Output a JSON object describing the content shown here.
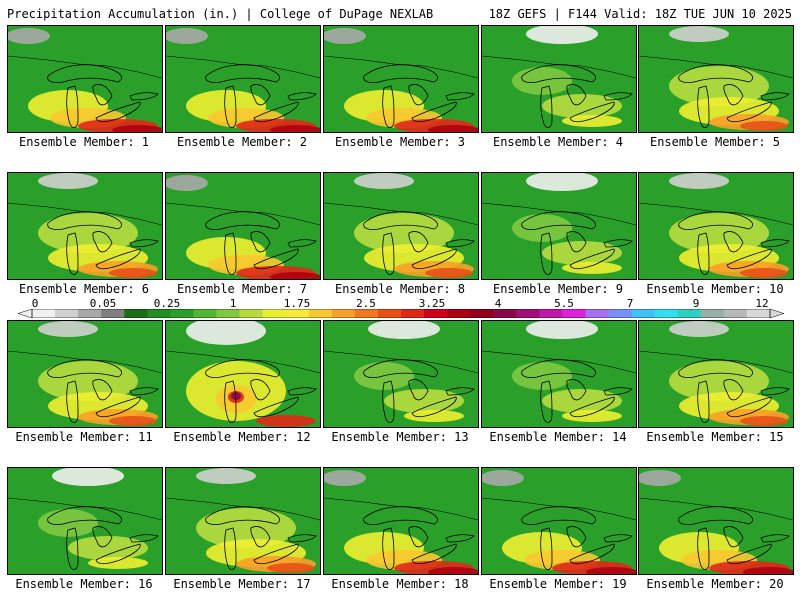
{
  "header": {
    "left": "Precipitation Accumulation (in.) | College of DuPage NEXLAB",
    "right": "18Z GEFS | F144 Valid: 18Z TUE JUN 10 2025"
  },
  "colorbar": {
    "labels": [
      "0",
      "0.05",
      "0.25",
      "1",
      "1.75",
      "2.5",
      "3.25",
      "4",
      "5.5",
      "7",
      "9",
      "12"
    ],
    "colors": [
      "#f0f0f0",
      "#d0d0d0",
      "#a8a8a8",
      "#808080",
      "#1a6e1a",
      "#218c21",
      "#2aa02a",
      "#4fb830",
      "#80c840",
      "#b8dc40",
      "#e8f030",
      "#f8e838",
      "#f8c830",
      "#f8a028",
      "#f07820",
      "#e85018",
      "#e02818",
      "#d00018",
      "#b00010",
      "#900018",
      "#880848",
      "#a01078",
      "#c018a8",
      "#e020d8",
      "#a870f0",
      "#7890f8",
      "#40c0f8",
      "#30e0f0",
      "#30d0c0",
      "#98b0a8",
      "#b8b8b8",
      "#d8d8d8"
    ]
  },
  "members": [
    {
      "label": "Ensemble Member: 1",
      "style": "r"
    },
    {
      "label": "Ensemble Member: 2",
      "style": "r"
    },
    {
      "label": "Ensemble Member: 3",
      "style": "r"
    },
    {
      "label": "Ensemble Member: 4",
      "style": "g"
    },
    {
      "label": "Ensemble Member: 5",
      "style": "y"
    },
    {
      "label": "Ensemble Member: 6",
      "style": "y"
    },
    {
      "label": "Ensemble Member: 7",
      "style": "r"
    },
    {
      "label": "Ensemble Member: 8",
      "style": "y"
    },
    {
      "label": "Ensemble Member: 9",
      "style": "g"
    },
    {
      "label": "Ensemble Member: 10",
      "style": "y"
    },
    {
      "label": "Ensemble Member: 11",
      "style": "y"
    },
    {
      "label": "Ensemble Member: 12",
      "style": "p"
    },
    {
      "label": "Ensemble Member: 13",
      "style": "g"
    },
    {
      "label": "Ensemble Member: 14",
      "style": "g"
    },
    {
      "label": "Ensemble Member: 15",
      "style": "y"
    },
    {
      "label": "Ensemble Member: 16",
      "style": "g"
    },
    {
      "label": "Ensemble Member: 17",
      "style": "y"
    },
    {
      "label": "Ensemble Member: 18",
      "style": "r"
    },
    {
      "label": "Ensemble Member: 19",
      "style": "r"
    },
    {
      "label": "Ensemble Member: 20",
      "style": "r"
    }
  ]
}
